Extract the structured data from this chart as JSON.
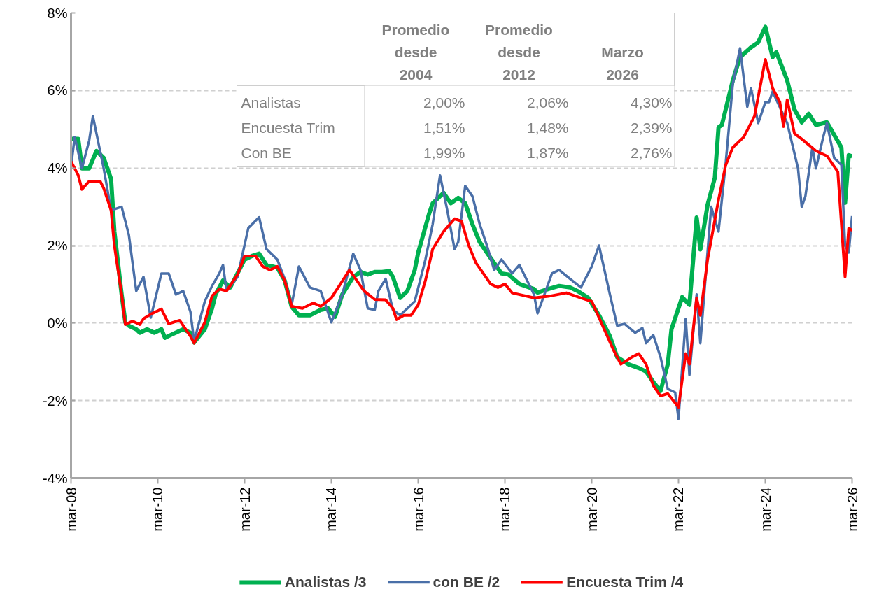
{
  "chart_data": {
    "type": "line",
    "xlim": [
      "2008-03",
      "2026-03"
    ],
    "xticks": [
      {
        "value": "2008-03",
        "label": "mar-08"
      },
      {
        "value": "2010-03",
        "label": "mar-10"
      },
      {
        "value": "2012-03",
        "label": "mar-12"
      },
      {
        "value": "2014-03",
        "label": "mar-14"
      },
      {
        "value": "2016-03",
        "label": "mar-16"
      },
      {
        "value": "2018-03",
        "label": "mar-18"
      },
      {
        "value": "2020-03",
        "label": "mar-20"
      },
      {
        "value": "2022-03",
        "label": "mar-22"
      },
      {
        "value": "2024-03",
        "label": "mar-24"
      },
      {
        "value": "2026-03",
        "label": "mar-26"
      }
    ],
    "ylim": [
      -4,
      8
    ],
    "yticks": [
      {
        "value": -4,
        "label": "-4%"
      },
      {
        "value": -2,
        "label": "-2%"
      },
      {
        "value": 0,
        "label": "0%"
      },
      {
        "value": 2,
        "label": "2%"
      },
      {
        "value": 4,
        "label": "4%"
      },
      {
        "value": 6,
        "label": "6%"
      },
      {
        "value": 8,
        "label": "8%"
      }
    ],
    "grid": "y",
    "legend": "bottom",
    "marker": "none",
    "line_style": "solid",
    "series": [
      {
        "name": "Analistas /3",
        "color": "#00b050",
        "x": [
          "2008-03",
          "2008-05",
          "2008-06",
          "2008-08",
          "2008-10",
          "2008-12",
          "2009-02",
          "2009-03",
          "2009-05",
          "2009-06",
          "2009-07",
          "2009-09",
          "2009-10",
          "2009-12",
          "2010-02",
          "2010-04",
          "2010-05",
          "2010-07",
          "2010-10",
          "2010-12",
          "2011-01",
          "2011-04",
          "2011-06",
          "2011-07",
          "2011-09",
          "2011-11",
          "2012-01",
          "2012-03",
          "2012-05",
          "2012-07",
          "2012-09",
          "2012-12",
          "2013-02",
          "2013-04",
          "2013-06",
          "2013-09",
          "2013-12",
          "2014-02",
          "2014-04",
          "2014-06",
          "2014-09",
          "2014-11",
          "2015-01",
          "2015-03",
          "2015-05",
          "2015-07",
          "2015-08",
          "2015-10",
          "2015-12",
          "2016-02",
          "2016-03",
          "2016-06",
          "2016-07",
          "2016-10",
          "2016-12",
          "2017-02",
          "2017-04",
          "2017-06",
          "2017-08",
          "2017-11",
          "2018-02",
          "2018-04",
          "2018-07",
          "2018-11",
          "2018-12",
          "2019-03",
          "2019-06",
          "2019-09",
          "2019-11",
          "2020-02",
          "2020-05",
          "2020-08",
          "2020-10",
          "2021-01",
          "2021-04",
          "2021-06",
          "2021-08",
          "2021-10",
          "2021-12",
          "2022-01",
          "2022-04",
          "2022-06",
          "2022-08",
          "2022-09",
          "2022-11",
          "2023-01",
          "2023-02",
          "2023-03",
          "2023-06",
          "2023-08",
          "2023-11",
          "2024-01",
          "2024-03",
          "2024-05",
          "2024-06",
          "2024-09",
          "2024-11",
          "2025-01",
          "2025-03",
          "2025-05",
          "2025-08",
          "2025-12",
          "2026-01",
          "2026-02",
          "2026-03"
        ],
        "values": [
          4.75,
          4.75,
          3.99,
          3.99,
          4.44,
          4.26,
          3.72,
          2.36,
          0.74,
          0.02,
          -0.07,
          -0.16,
          -0.25,
          -0.16,
          -0.25,
          -0.16,
          -0.38,
          -0.29,
          -0.16,
          -0.25,
          -0.5,
          -0.16,
          0.38,
          0.74,
          1.1,
          0.92,
          1.28,
          1.64,
          1.73,
          1.79,
          1.5,
          1.43,
          1.1,
          0.42,
          0.2,
          0.2,
          0.34,
          0.38,
          0.16,
          0.74,
          1.19,
          1.32,
          1.25,
          1.32,
          1.32,
          1.34,
          1.19,
          0.65,
          0.83,
          1.37,
          1.82,
          2.82,
          3.09,
          3.36,
          3.09,
          3.23,
          3.09,
          2.55,
          2.09,
          1.68,
          1.28,
          1.25,
          1.01,
          0.88,
          0.79,
          0.88,
          0.96,
          0.92,
          0.83,
          0.65,
          0.2,
          -0.34,
          -0.88,
          -1.06,
          -1.16,
          -1.25,
          -1.52,
          -1.75,
          -1.06,
          -0.16,
          0.67,
          0.47,
          2.72,
          1.9,
          3.05,
          3.75,
          5.05,
          5.11,
          6.26,
          6.86,
          7.11,
          7.24,
          7.64,
          6.86,
          6.99,
          6.26,
          5.51,
          5.18,
          5.4,
          5.11,
          5.18,
          4.53,
          3.1,
          4.33,
          4.3
        ]
      },
      {
        "name": "con BE /2",
        "color": "#4a6fa8",
        "x": [
          "2008-03",
          "2008-04",
          "2008-06",
          "2008-08",
          "2008-09",
          "2008-11",
          "2008-12",
          "2009-02",
          "2009-05",
          "2009-07",
          "2009-09",
          "2009-11",
          "2010-01",
          "2010-04",
          "2010-06",
          "2010-08",
          "2010-10",
          "2010-12",
          "2011-01",
          "2011-04",
          "2011-06",
          "2011-08",
          "2011-09",
          "2011-10",
          "2012-01",
          "2012-04",
          "2012-07",
          "2012-09",
          "2012-12",
          "2013-02",
          "2013-04",
          "2013-06",
          "2013-09",
          "2013-12",
          "2014-03",
          "2014-06",
          "2014-09",
          "2014-11",
          "2015-01",
          "2015-03",
          "2015-04",
          "2015-06",
          "2015-08",
          "2015-10",
          "2016-02",
          "2016-05",
          "2016-07",
          "2016-09",
          "2016-11",
          "2017-01",
          "2017-02",
          "2017-04",
          "2017-06",
          "2017-08",
          "2017-10",
          "2017-12",
          "2018-02",
          "2018-05",
          "2018-07",
          "2018-11",
          "2018-12",
          "2019-04",
          "2019-06",
          "2019-09",
          "2019-12",
          "2020-03",
          "2020-05",
          "2020-08",
          "2020-10",
          "2020-12",
          "2021-03",
          "2021-05",
          "2021-06",
          "2021-08",
          "2021-10",
          "2021-12",
          "2022-02",
          "2022-03",
          "2022-05",
          "2022-06",
          "2022-08",
          "2022-09",
          "2022-12",
          "2023-02",
          "2023-04",
          "2023-06",
          "2023-08",
          "2023-10",
          "2023-11",
          "2024-01",
          "2024-03",
          "2024-04",
          "2024-05",
          "2024-09",
          "2024-12",
          "2025-01",
          "2025-02",
          "2025-04",
          "2025-05",
          "2025-07",
          "2025-08",
          "2025-10",
          "2025-12",
          "2026-01",
          "2026-02",
          "2026-03"
        ],
        "values": [
          4.03,
          4.8,
          3.99,
          4.71,
          5.34,
          4.44,
          3.99,
          2.91,
          3.0,
          2.27,
          0.83,
          1.19,
          0.14,
          1.28,
          1.28,
          0.74,
          0.83,
          0.29,
          -0.47,
          0.56,
          0.96,
          1.28,
          1.5,
          0.83,
          1.19,
          2.45,
          2.73,
          1.91,
          1.64,
          1.14,
          0.47,
          1.46,
          0.92,
          0.83,
          0.02,
          0.74,
          1.79,
          1.37,
          0.38,
          0.34,
          0.83,
          1.14,
          0.34,
          0.2,
          0.56,
          1.64,
          2.55,
          3.81,
          2.91,
          1.91,
          2.09,
          3.54,
          3.27,
          2.55,
          2.0,
          1.37,
          1.64,
          1.28,
          1.5,
          0.74,
          0.25,
          1.28,
          1.37,
          1.14,
          0.92,
          1.46,
          2.0,
          0.74,
          -0.07,
          -0.02,
          -0.25,
          -0.13,
          -0.52,
          -0.31,
          -0.88,
          -1.7,
          -1.79,
          -2.47,
          0.11,
          -1.34,
          0.74,
          -0.52,
          3.0,
          2.36,
          4.08,
          6.16,
          7.09,
          5.58,
          6.06,
          5.16,
          5.7,
          5.7,
          5.97,
          5.16,
          3.99,
          3.0,
          3.27,
          4.53,
          3.99,
          4.8,
          5.16,
          4.26,
          4.08,
          2.0,
          1.82,
          2.76
        ]
      },
      {
        "name": "Encuesta Trim /4",
        "color": "#ff0000",
        "x": [
          "2008-03",
          "2008-05",
          "2008-06",
          "2008-08",
          "2008-11",
          "2008-12",
          "2009-02",
          "2009-03",
          "2009-05",
          "2009-06",
          "2009-08",
          "2009-10",
          "2009-11",
          "2010-01",
          "2010-04",
          "2010-06",
          "2010-09",
          "2010-12",
          "2011-01",
          "2011-04",
          "2011-06",
          "2011-08",
          "2011-10",
          "2012-01",
          "2012-03",
          "2012-06",
          "2012-08",
          "2012-10",
          "2012-12",
          "2013-02",
          "2013-04",
          "2013-07",
          "2013-10",
          "2013-12",
          "2014-03",
          "2014-08",
          "2014-10",
          "2014-12",
          "2015-03",
          "2015-06",
          "2015-08",
          "2015-09",
          "2015-11",
          "2016-01",
          "2016-03",
          "2016-05",
          "2016-07",
          "2016-10",
          "2017-01",
          "2017-03",
          "2017-05",
          "2017-07",
          "2017-09",
          "2017-11",
          "2018-01",
          "2018-03",
          "2018-05",
          "2018-11",
          "2019-03",
          "2019-08",
          "2019-12",
          "2020-03",
          "2020-06",
          "2020-09",
          "2020-11",
          "2021-02",
          "2021-04",
          "2021-06",
          "2021-08",
          "2021-10",
          "2021-12",
          "2022-02",
          "2022-03",
          "2022-05",
          "2022-06",
          "2022-08",
          "2022-09",
          "2022-11",
          "2023-02",
          "2023-04",
          "2023-06",
          "2023-09",
          "2023-12",
          "2024-03",
          "2024-05",
          "2024-07",
          "2024-08",
          "2024-09",
          "2024-11",
          "2025-01",
          "2025-05",
          "2025-08",
          "2025-11",
          "2026-01",
          "2026-02",
          "2026-03"
        ],
        "values": [
          4.17,
          3.81,
          3.45,
          3.66,
          3.66,
          3.48,
          2.91,
          2.0,
          0.74,
          -0.04,
          0.05,
          -0.04,
          0.11,
          0.23,
          0.36,
          -0.02,
          0.07,
          -0.34,
          -0.52,
          0.02,
          0.7,
          0.88,
          0.83,
          1.25,
          1.73,
          1.73,
          1.46,
          1.37,
          1.46,
          1.1,
          0.43,
          0.38,
          0.52,
          0.43,
          0.65,
          1.37,
          1.1,
          0.83,
          0.61,
          0.6,
          0.38,
          0.09,
          0.2,
          0.2,
          0.47,
          1.1,
          1.91,
          2.36,
          2.69,
          2.63,
          2.0,
          1.55,
          1.28,
          1.01,
          0.92,
          1.01,
          0.78,
          0.65,
          0.69,
          0.78,
          0.65,
          0.56,
          -0.07,
          -0.7,
          -1.06,
          -0.88,
          -0.79,
          -1.06,
          -1.61,
          -1.88,
          -1.82,
          -2.06,
          -2.17,
          -0.79,
          -1.06,
          0.65,
          0.2,
          1.64,
          3.18,
          4.06,
          4.53,
          4.8,
          5.34,
          6.8,
          6.06,
          5.7,
          5.07,
          5.76,
          4.89,
          4.75,
          4.44,
          4.31,
          3.9,
          1.19,
          2.45,
          2.39
        ]
      }
    ],
    "annotations": [
      "Promedio desde 2004",
      "Promedio desde 2012",
      "Marzo 2026",
      "Analistas",
      "2,00%",
      "2,06%",
      "4,30%",
      "Encuesta Trim",
      "1,51%",
      "1,48%",
      "2,39%",
      "Con BE",
      "1,99%",
      "1,87%",
      "2,76%"
    ]
  }
}
